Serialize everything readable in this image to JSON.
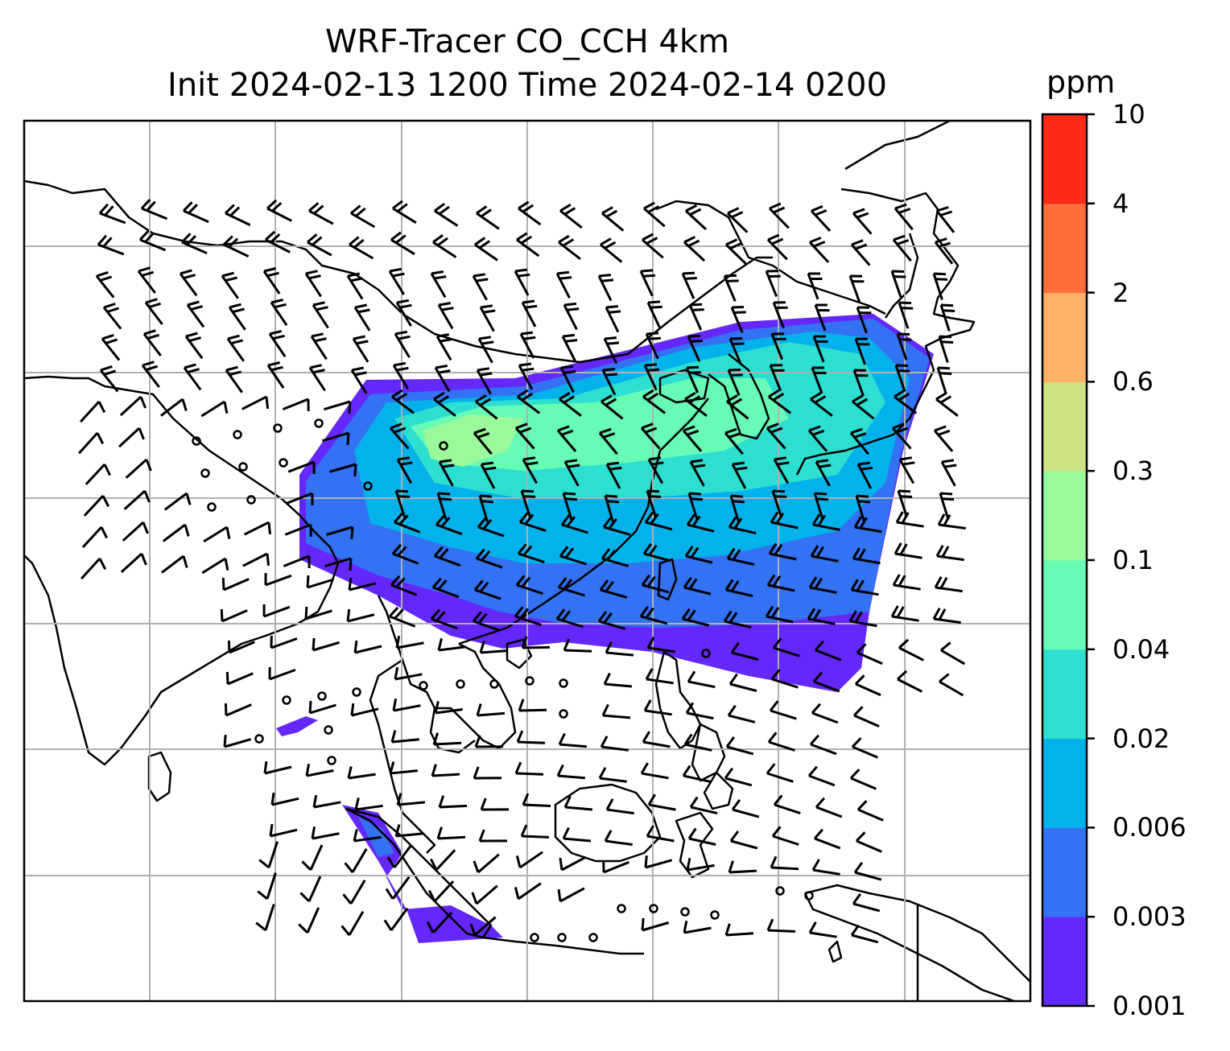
{
  "title_line1": "WRF-Tracer CO_CCH 4km",
  "title_line2": "Init 2024-02-13 1200 Time 2024-02-14 0200",
  "colorbar": {
    "units": "ppm",
    "tick_labels": [
      "0.001",
      "0.003",
      "0.006",
      "0.02",
      "0.04",
      "0.1",
      "0.3",
      "0.6",
      "2",
      "4",
      "10"
    ],
    "colors": [
      "#6428fa",
      "#3372f2",
      "#03b2ea",
      "#2ddfd1",
      "#67fbb6",
      "#9af99a",
      "#cde282",
      "#fdb266",
      "#ff6d3b",
      "#ff2a17"
    ]
  },
  "map": {
    "gridlines": true,
    "coastline_color": "#000000",
    "wind_barb_color": "#000000",
    "tracer_plume": "eastward band from southern China across Taiwan and East China Sea toward Japan, with a secondary patch over Sumatra"
  }
}
